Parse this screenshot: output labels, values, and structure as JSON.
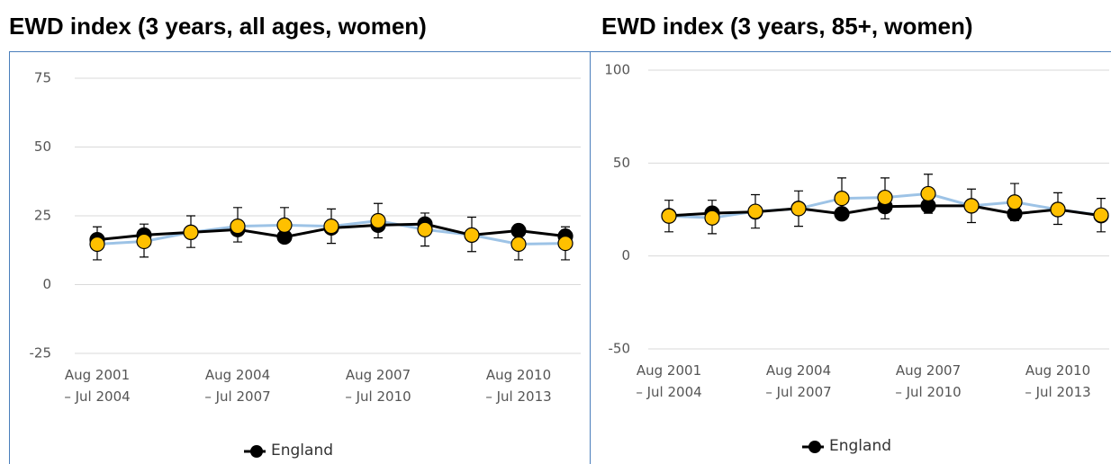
{
  "chart_data": [
    {
      "type": "line",
      "title": "EWD index (3 years, all ages, women)",
      "categories": [
        "Aug 2001\n– Jul 2004",
        null,
        null,
        "Aug 2004\n– Jul 2007",
        null,
        null,
        "Aug 2007\n– Jul 2010",
        null,
        null,
        "Aug 2010\n– Jul 2013",
        null
      ],
      "ylim": [
        -25,
        75
      ],
      "yticks": [
        -25,
        0,
        25,
        50,
        75
      ],
      "grid": true,
      "series": [
        {
          "name": "England",
          "color": "#000000",
          "values": [
            16.3,
            18,
            19,
            20,
            17.3,
            20.6,
            21.6,
            22,
            18,
            19.6,
            17.6
          ]
        },
        {
          "color": "#ffc000",
          "line_color": "#9dc3e6",
          "values": [
            14.7,
            15.7,
            19,
            21.2,
            21.6,
            21.2,
            23.2,
            20,
            18,
            14.7,
            15
          ],
          "lower": [
            9,
            10,
            13.5,
            15.5,
            15.5,
            15,
            17,
            14,
            12,
            9,
            9
          ],
          "upper": [
            21,
            22,
            25,
            28,
            28,
            27.5,
            29.5,
            26,
            24.5,
            20.5,
            21
          ]
        }
      ]
    },
    {
      "type": "line",
      "title": "EWD index (3 years, 85+, women)",
      "categories": [
        "Aug 2001\n– Jul 2004",
        null,
        null,
        "Aug 2004\n– Jul 2007",
        null,
        null,
        "Aug 2007\n– Jul 2010",
        null,
        null,
        "Aug 2010\n– Jul 2013",
        null
      ],
      "ylim": [
        -50,
        100
      ],
      "yticks": [
        -50,
        0,
        50,
        100
      ],
      "grid": true,
      "series": [
        {
          "name": "England",
          "color": "#000000",
          "values": [
            21.7,
            23,
            23.7,
            25.6,
            22.7,
            26.6,
            27,
            27,
            22.7,
            25,
            21.7
          ]
        },
        {
          "color": "#ffc000",
          "line_color": "#9dc3e6",
          "values": [
            21.5,
            20.5,
            24,
            25.5,
            31,
            31.5,
            33.5,
            27,
            29,
            25,
            22
          ],
          "lower": [
            13,
            12,
            15,
            16,
            20,
            20,
            23,
            18,
            19,
            17,
            13
          ],
          "upper": [
            30,
            30,
            33,
            35,
            42,
            42,
            44,
            36,
            39,
            34,
            31
          ]
        }
      ]
    }
  ]
}
